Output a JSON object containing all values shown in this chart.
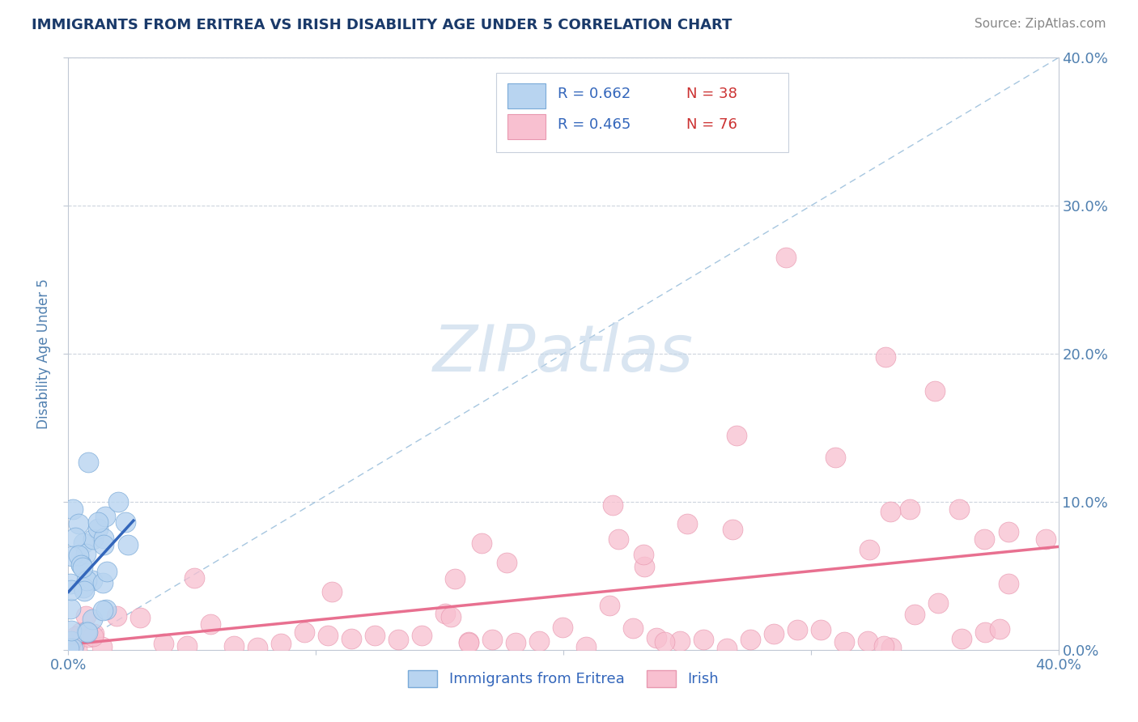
{
  "title": "IMMIGRANTS FROM ERITREA VS IRISH DISABILITY AGE UNDER 5 CORRELATION CHART",
  "source": "Source: ZipAtlas.com",
  "ylabel": "Disability Age Under 5",
  "xlim": [
    0.0,
    0.4
  ],
  "ylim": [
    0.0,
    0.4
  ],
  "series1_color": "#b8d4f0",
  "series1_edge": "#7aaad8",
  "series2_color": "#f8c0d0",
  "series2_edge": "#e898b0",
  "reg_line1_color": "#3366bb",
  "reg_line2_color": "#e87090",
  "ref_line_color": "#90b8d8",
  "legend_R1": "R = 0.662",
  "legend_N1": "N = 38",
  "legend_R2": "R = 0.465",
  "legend_N2": "N = 76",
  "watermark": "ZIPatlas",
  "watermark_color": "#c0d4e8",
  "title_color": "#1a3a6a",
  "axis_label_color": "#5080b0",
  "legend_text_color": "#3366bb",
  "legend_N_color": "#cc3333",
  "grid_color": "#c8d0da",
  "background_color": "#ffffff"
}
